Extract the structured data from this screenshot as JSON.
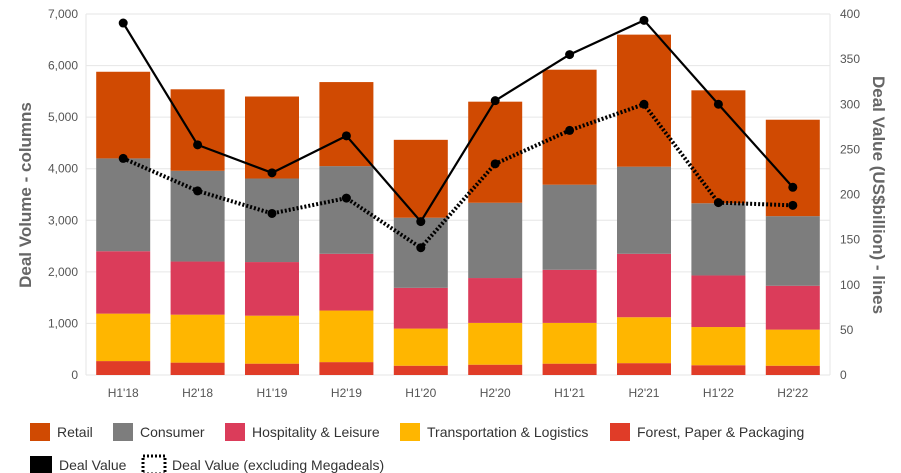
{
  "chart_data": {
    "type": "bar",
    "stacked": true,
    "categories": [
      "H1'18",
      "H2'18",
      "H1'19",
      "H2'19",
      "H1'20",
      "H2'20",
      "H1'21",
      "H2'21",
      "H1'22",
      "H2'22"
    ],
    "series": [
      {
        "name": "Forest, Paper & Packaging",
        "color": "#e03c28",
        "values": [
          270,
          240,
          220,
          250,
          180,
          200,
          220,
          230,
          190,
          180
        ]
      },
      {
        "name": "Transportation & Logistics",
        "color": "#ffb600",
        "values": [
          920,
          930,
          930,
          1000,
          720,
          810,
          790,
          890,
          740,
          700
        ]
      },
      {
        "name": "Hospitality & Leisure",
        "color": "#db3c5a",
        "values": [
          1210,
          1030,
          1040,
          1100,
          790,
          870,
          1030,
          1230,
          1000,
          850
        ]
      },
      {
        "name": "Consumer",
        "color": "#7d7d7d",
        "values": [
          1800,
          1760,
          1620,
          1700,
          1360,
          1460,
          1650,
          1690,
          1400,
          1350
        ]
      },
      {
        "name": "Retail",
        "color": "#d04a02",
        "values": [
          1680,
          1580,
          1590,
          1630,
          1510,
          1960,
          2230,
          2560,
          2190,
          1870
        ]
      }
    ],
    "lines": [
      {
        "name": "Deal Value",
        "style": "solid",
        "color": "#000000",
        "values": [
          390,
          255,
          224,
          265,
          170,
          304,
          355,
          393,
          300,
          208
        ]
      },
      {
        "name": "Deal Value (excluding Megadeals)",
        "style": "dotted",
        "color": "#000000",
        "values": [
          240,
          204,
          179,
          196,
          141,
          234,
          271,
          300,
          191,
          188
        ]
      }
    ],
    "ylabel": "Deal Volume - columns",
    "y2label": "Deal Value (US$billion) - lines",
    "ylim": [
      0,
      7000
    ],
    "y2lim": [
      0,
      400
    ],
    "yticks": [
      "0",
      "1,000",
      "2,000",
      "3,000",
      "4,000",
      "5,000",
      "6,000",
      "7,000"
    ],
    "y2ticks": [
      "0",
      "50",
      "100",
      "150",
      "200",
      "250",
      "300",
      "350",
      "400"
    ],
    "grid": true,
    "legend_position": "bottom-left"
  }
}
